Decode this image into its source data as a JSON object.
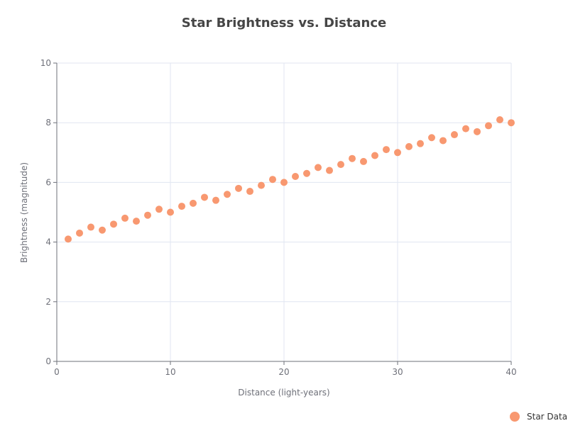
{
  "chart_data": {
    "type": "scatter",
    "title": "Star Brightness vs. Distance",
    "xlabel": "Distance (light-years)",
    "ylabel": "Brightness (magnitude)",
    "xlim": [
      0,
      40
    ],
    "ylim": [
      0,
      10
    ],
    "xticks": [
      0,
      10,
      20,
      30,
      40
    ],
    "yticks": [
      0,
      2,
      4,
      6,
      8,
      10
    ],
    "grid": true,
    "legend_position": "bottom-right",
    "series": [
      {
        "name": "Star Data",
        "color": "#f89870",
        "points": [
          {
            "x": 1,
            "y": 4.1
          },
          {
            "x": 2,
            "y": 4.3
          },
          {
            "x": 3,
            "y": 4.5
          },
          {
            "x": 4,
            "y": 4.4
          },
          {
            "x": 5,
            "y": 4.6
          },
          {
            "x": 6,
            "y": 4.8
          },
          {
            "x": 7,
            "y": 4.7
          },
          {
            "x": 8,
            "y": 4.9
          },
          {
            "x": 9,
            "y": 5.1
          },
          {
            "x": 10,
            "y": 5.0
          },
          {
            "x": 11,
            "y": 5.2
          },
          {
            "x": 12,
            "y": 5.3
          },
          {
            "x": 13,
            "y": 5.5
          },
          {
            "x": 14,
            "y": 5.4
          },
          {
            "x": 15,
            "y": 5.6
          },
          {
            "x": 16,
            "y": 5.8
          },
          {
            "x": 17,
            "y": 5.7
          },
          {
            "x": 18,
            "y": 5.9
          },
          {
            "x": 19,
            "y": 6.1
          },
          {
            "x": 20,
            "y": 6.0
          },
          {
            "x": 21,
            "y": 6.2
          },
          {
            "x": 22,
            "y": 6.3
          },
          {
            "x": 23,
            "y": 6.5
          },
          {
            "x": 24,
            "y": 6.4
          },
          {
            "x": 25,
            "y": 6.6
          },
          {
            "x": 26,
            "y": 6.8
          },
          {
            "x": 27,
            "y": 6.7
          },
          {
            "x": 28,
            "y": 6.9
          },
          {
            "x": 29,
            "y": 7.1
          },
          {
            "x": 30,
            "y": 7.0
          },
          {
            "x": 31,
            "y": 7.2
          },
          {
            "x": 32,
            "y": 7.3
          },
          {
            "x": 33,
            "y": 7.5
          },
          {
            "x": 34,
            "y": 7.4
          },
          {
            "x": 35,
            "y": 7.6
          },
          {
            "x": 36,
            "y": 7.8
          },
          {
            "x": 37,
            "y": 7.7
          },
          {
            "x": 38,
            "y": 7.9
          },
          {
            "x": 39,
            "y": 8.1
          },
          {
            "x": 40,
            "y": 8.0
          }
        ]
      }
    ]
  }
}
